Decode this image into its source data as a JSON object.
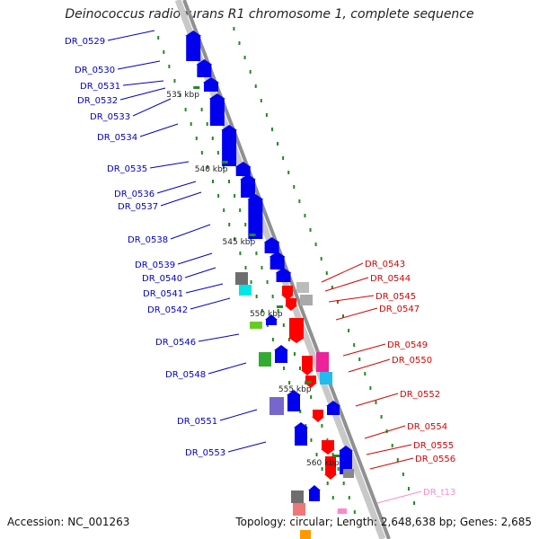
{
  "title": "Deinococcus radiodurans R1 chromosome 1, complete sequence",
  "footer": {
    "accession": "Accession: NC_001263",
    "summary": "Topology: circular; Length: 2,648,638 bp; Genes: 2,685"
  },
  "colors": {
    "forward_label": "#0000cc",
    "reverse_label": "#dd0000",
    "trna_label": "#ff88cc",
    "scale_tick": "#228b22",
    "backbone": "#909090"
  },
  "scale_ticks": [
    "535 kbp",
    "540 kbp",
    "545 kbp",
    "550 kbp",
    "555 kbp",
    "560 kbp"
  ],
  "left_genes": [
    "DR_0529",
    "DR_0530",
    "DR_0531",
    "DR_0532",
    "DR_0533",
    "DR_0534",
    "DR_0535",
    "DR_0536",
    "DR_0537",
    "DR_0538",
    "DR_0539",
    "DR_0540",
    "DR_0541",
    "DR_0542",
    "DR_0546",
    "DR_0548",
    "DR_0551",
    "DR_0553"
  ],
  "right_genes": [
    "DR_0543",
    "DR_0544",
    "DR_0545",
    "DR_0547",
    "DR_0549",
    "DR_0550",
    "DR_0552",
    "DR_0554",
    "DR_0555",
    "DR_0556",
    "DR_t13"
  ]
}
